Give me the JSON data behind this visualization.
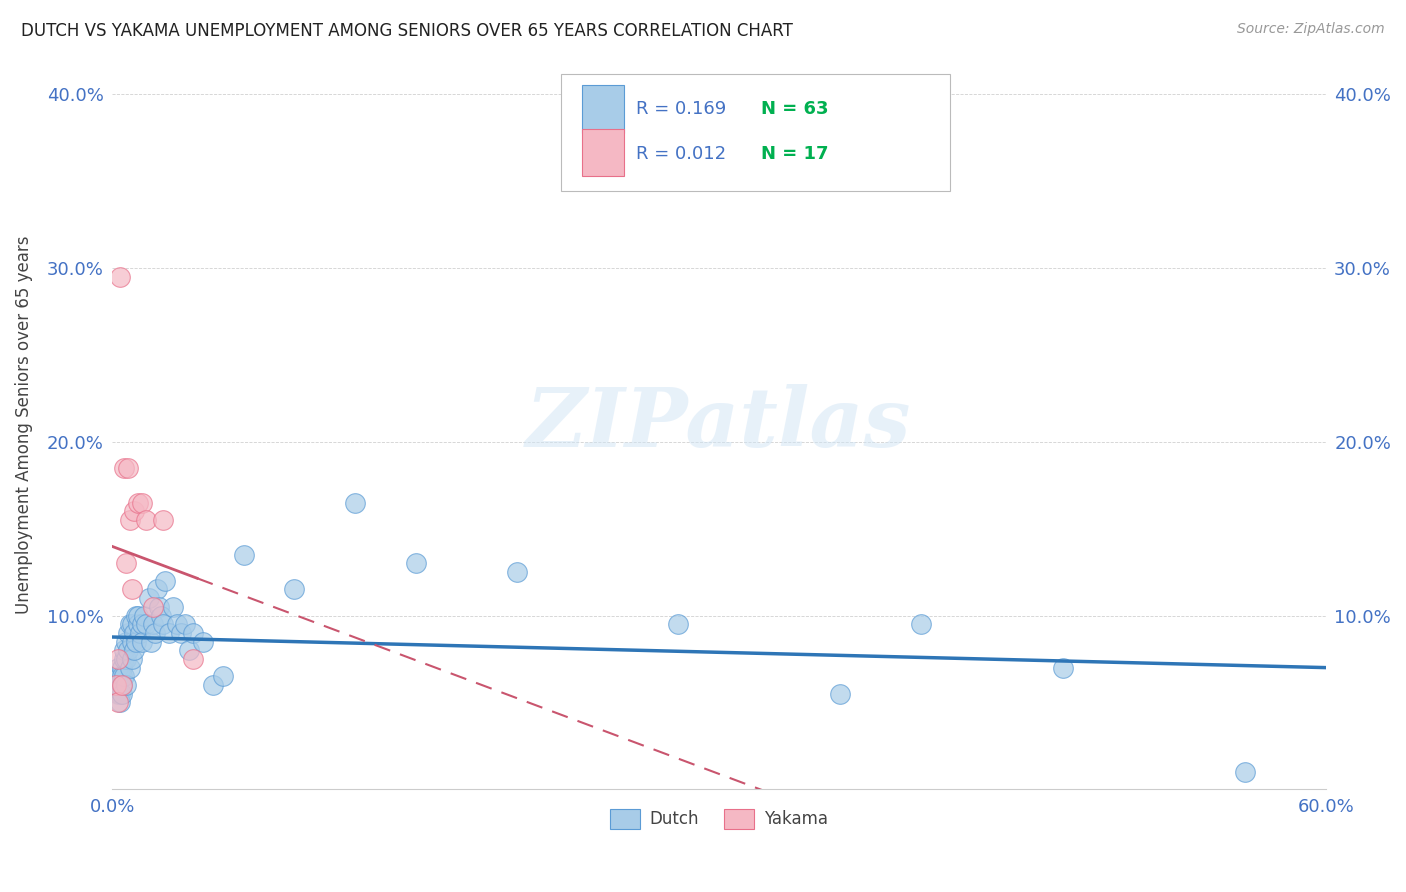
{
  "title": "DUTCH VS YAKAMA UNEMPLOYMENT AMONG SENIORS OVER 65 YEARS CORRELATION CHART",
  "source": "Source: ZipAtlas.com",
  "ylabel": "Unemployment Among Seniors over 65 years",
  "xlim": [
    0.0,
    0.6
  ],
  "ylim": [
    0.0,
    0.42
  ],
  "xticks": [
    0.0,
    0.1,
    0.2,
    0.3,
    0.4,
    0.5,
    0.6
  ],
  "xticklabels": [
    "0.0%",
    "",
    "",
    "",
    "",
    "",
    "60.0%"
  ],
  "yticks_left": [
    0.0,
    0.1,
    0.2,
    0.3,
    0.4
  ],
  "yticklabels_left": [
    "",
    "10.0%",
    "20.0%",
    "30.0%",
    "40.0%"
  ],
  "yticks_right": [
    0.0,
    0.1,
    0.2,
    0.3,
    0.4
  ],
  "yticklabels_right": [
    "",
    "10.0%",
    "20.0%",
    "30.0%",
    "40.0%"
  ],
  "dutch_color": "#a8cce8",
  "yakama_color": "#f5b8c4",
  "dutch_edge_color": "#5b9bd5",
  "yakama_edge_color": "#e8708a",
  "dutch_line_color": "#2e75b6",
  "yakama_line_color": "#c9556e",
  "tick_color": "#4472c4",
  "background_color": "#ffffff",
  "watermark": "ZIPatlas",
  "legend_r_color": "#4472c4",
  "legend_n_color": "#00b050",
  "legend_r_dutch": "R = 0.169",
  "legend_n_dutch": "N = 63",
  "legend_r_yakama": "R = 0.012",
  "legend_n_yakama": "N = 17",
  "dutch_x": [
    0.002,
    0.003,
    0.003,
    0.004,
    0.004,
    0.004,
    0.005,
    0.005,
    0.005,
    0.005,
    0.006,
    0.006,
    0.006,
    0.007,
    0.007,
    0.007,
    0.008,
    0.008,
    0.009,
    0.009,
    0.01,
    0.01,
    0.01,
    0.011,
    0.011,
    0.012,
    0.012,
    0.013,
    0.013,
    0.014,
    0.015,
    0.015,
    0.016,
    0.017,
    0.018,
    0.019,
    0.02,
    0.021,
    0.022,
    0.023,
    0.024,
    0.025,
    0.026,
    0.028,
    0.03,
    0.032,
    0.034,
    0.036,
    0.038,
    0.04,
    0.045,
    0.05,
    0.055,
    0.065,
    0.09,
    0.12,
    0.15,
    0.2,
    0.28,
    0.36,
    0.4,
    0.47,
    0.56
  ],
  "dutch_y": [
    0.06,
    0.055,
    0.07,
    0.065,
    0.055,
    0.05,
    0.06,
    0.07,
    0.065,
    0.055,
    0.075,
    0.065,
    0.08,
    0.085,
    0.075,
    0.06,
    0.09,
    0.08,
    0.095,
    0.07,
    0.085,
    0.075,
    0.095,
    0.09,
    0.08,
    0.1,
    0.085,
    0.095,
    0.1,
    0.09,
    0.095,
    0.085,
    0.1,
    0.095,
    0.11,
    0.085,
    0.095,
    0.09,
    0.115,
    0.105,
    0.1,
    0.095,
    0.12,
    0.09,
    0.105,
    0.095,
    0.09,
    0.095,
    0.08,
    0.09,
    0.085,
    0.06,
    0.065,
    0.135,
    0.115,
    0.165,
    0.13,
    0.125,
    0.095,
    0.055,
    0.095,
    0.07,
    0.01
  ],
  "yakama_x": [
    0.002,
    0.003,
    0.003,
    0.004,
    0.005,
    0.006,
    0.007,
    0.008,
    0.009,
    0.01,
    0.011,
    0.013,
    0.015,
    0.017,
    0.02,
    0.025,
    0.04
  ],
  "yakama_y": [
    0.06,
    0.05,
    0.075,
    0.295,
    0.06,
    0.185,
    0.13,
    0.185,
    0.155,
    0.115,
    0.16,
    0.165,
    0.165,
    0.155,
    0.105,
    0.155,
    0.075
  ]
}
